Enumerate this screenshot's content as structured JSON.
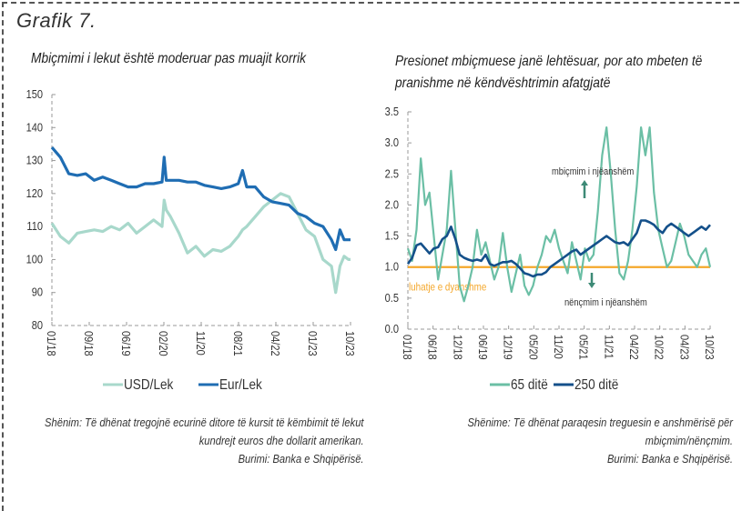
{
  "figure_label": "Grafik 7.",
  "colors": {
    "usd": "#a8d8cb",
    "eur": "#1f6db3",
    "d65": "#6bbfa5",
    "d250": "#14508a",
    "neutral": "#f4a72a",
    "arrow": "#3d8a76"
  },
  "left_note": [
    "Shënim: Të dhënat tregojnë ecurinë ditore të kursit të këmbimit të lekut",
    "kundrejt euros dhe dollarit amerikan.",
    "Burimi: Banka e Shqipërisë."
  ],
  "right_note": [
    "Shënime: Të dhënat paraqesin treguesin e anshmërisë për",
    "mbiçmim/nënçmim.",
    "Burimi: Banka e Shqipërisë."
  ],
  "chart_data": [
    {
      "type": "line",
      "title": "Mbiçmimi i lekut është moderuar pas muajit korrik",
      "xlabel": "",
      "ylabel": "",
      "ylim": [
        80,
        150
      ],
      "yticks": [
        "150",
        "140",
        "130",
        "120",
        "110",
        "100",
        "90",
        "80"
      ],
      "xticks": [
        "01/18",
        "09/18",
        "06/19",
        "02/20",
        "11/20",
        "08/21",
        "04/22",
        "01/23",
        "10/23"
      ],
      "legend_position": "bottom",
      "x": [
        0,
        2,
        4,
        6,
        8,
        10,
        12,
        14,
        16,
        18,
        20,
        22,
        24,
        26,
        26.5,
        27,
        28,
        30,
        32,
        34,
        36,
        38,
        40,
        42,
        44,
        45,
        46,
        48,
        50,
        52,
        54,
        56,
        58,
        60,
        62,
        64,
        66,
        67,
        68,
        69,
        70,
        70.5
      ],
      "series": [
        {
          "name": "USD/Lek",
          "values": [
            111,
            107,
            105,
            108,
            108.5,
            109,
            108.5,
            110,
            109,
            111,
            108,
            110,
            112,
            110,
            118,
            115,
            113,
            108,
            102,
            104,
            101,
            103,
            102.5,
            104,
            107,
            109,
            110,
            113,
            116,
            118,
            120,
            119,
            114,
            109,
            107,
            100,
            98,
            90,
            98,
            101,
            100,
            100
          ]
        },
        {
          "name": "Eur/Lek",
          "values": [
            134,
            131,
            126,
            125.5,
            126,
            124,
            125,
            124,
            123,
            122,
            122,
            123,
            123,
            123.5,
            131,
            124,
            124,
            124,
            123.5,
            123.5,
            122.5,
            122,
            121.5,
            122,
            123,
            127,
            122,
            122,
            119,
            117.5,
            117,
            116.5,
            114,
            113,
            111,
            110,
            106,
            103,
            109,
            106,
            106,
            106
          ]
        }
      ]
    },
    {
      "type": "line",
      "title": "Presionet mbiçmuese janë lehtësuar, por ato mbeten të pranishme në këndvështrimin afatgjatë",
      "xlabel": "",
      "ylabel": "",
      "ylim": [
        0,
        3.5
      ],
      "yticks": [
        "3.5",
        "3.0",
        "2.5",
        "2.0",
        "1.5",
        "1.0",
        "0.5",
        "0.0"
      ],
      "xticks": [
        "01/18",
        "06/18",
        "12/18",
        "06/19",
        "12/19",
        "05/20",
        "11/20",
        "05/21",
        "11/21",
        "04/22",
        "10/22",
        "04/23",
        "10/23"
      ],
      "legend_position": "bottom",
      "x": [
        0,
        1,
        2,
        3,
        4,
        5,
        6,
        7,
        8,
        9,
        10,
        11,
        12,
        13,
        14,
        15,
        16,
        17,
        18,
        19,
        20,
        21,
        22,
        23,
        24,
        25,
        26,
        27,
        28,
        29,
        30,
        31,
        32,
        33,
        34,
        35,
        36,
        37,
        38,
        39,
        40,
        41,
        42,
        43,
        44,
        45,
        46,
        47,
        48,
        49,
        50,
        51,
        52,
        53,
        54,
        55,
        56,
        57,
        58,
        59,
        60,
        61,
        62,
        63,
        64,
        65,
        66,
        67,
        68,
        69,
        70
      ],
      "series": [
        {
          "name": "65 ditë",
          "values": [
            1.3,
            1.1,
            1.6,
            2.75,
            2.0,
            2.2,
            1.5,
            0.8,
            1.2,
            1.6,
            2.55,
            1.6,
            0.7,
            0.45,
            0.7,
            1.0,
            1.6,
            1.2,
            1.4,
            1.1,
            0.8,
            1.0,
            1.55,
            1.0,
            0.6,
            0.9,
            1.2,
            0.7,
            0.55,
            0.7,
            1.0,
            1.2,
            1.5,
            1.4,
            1.6,
            1.3,
            1.1,
            0.9,
            1.4,
            1.1,
            0.8,
            1.3,
            1.1,
            1.2,
            1.9,
            2.8,
            3.25,
            2.5,
            1.6,
            0.9,
            0.8,
            1.1,
            1.6,
            2.3,
            3.25,
            2.8,
            3.25,
            2.2,
            1.6,
            1.3,
            1.0,
            1.1,
            1.4,
            1.7,
            1.5,
            1.2,
            1.1,
            1.0,
            1.2,
            1.3,
            1.0
          ]
        },
        {
          "name": "250 ditë",
          "values": [
            1.05,
            1.15,
            1.35,
            1.38,
            1.3,
            1.22,
            1.3,
            1.32,
            1.45,
            1.5,
            1.65,
            1.45,
            1.2,
            1.15,
            1.12,
            1.1,
            1.12,
            1.1,
            1.2,
            1.05,
            1.02,
            1.05,
            1.08,
            1.08,
            1.1,
            1.05,
            0.98,
            0.9,
            0.88,
            0.85,
            0.88,
            0.88,
            0.92,
            1.0,
            1.05,
            1.1,
            1.15,
            1.2,
            1.25,
            1.28,
            1.2,
            1.25,
            1.3,
            1.35,
            1.4,
            1.45,
            1.5,
            1.45,
            1.4,
            1.38,
            1.4,
            1.35,
            1.45,
            1.55,
            1.75,
            1.75,
            1.72,
            1.68,
            1.6,
            1.55,
            1.65,
            1.7,
            1.65,
            1.6,
            1.55,
            1.5,
            1.55,
            1.6,
            1.65,
            1.6,
            1.68
          ]
        }
      ],
      "reference_line": {
        "value": 1.0,
        "label": "luhatje e dyanshme"
      },
      "annotations": [
        {
          "text": "mbiçmim i njëanshëm",
          "direction": "up"
        },
        {
          "text": "nënçmim i njëanshëm",
          "direction": "down"
        }
      ]
    }
  ]
}
